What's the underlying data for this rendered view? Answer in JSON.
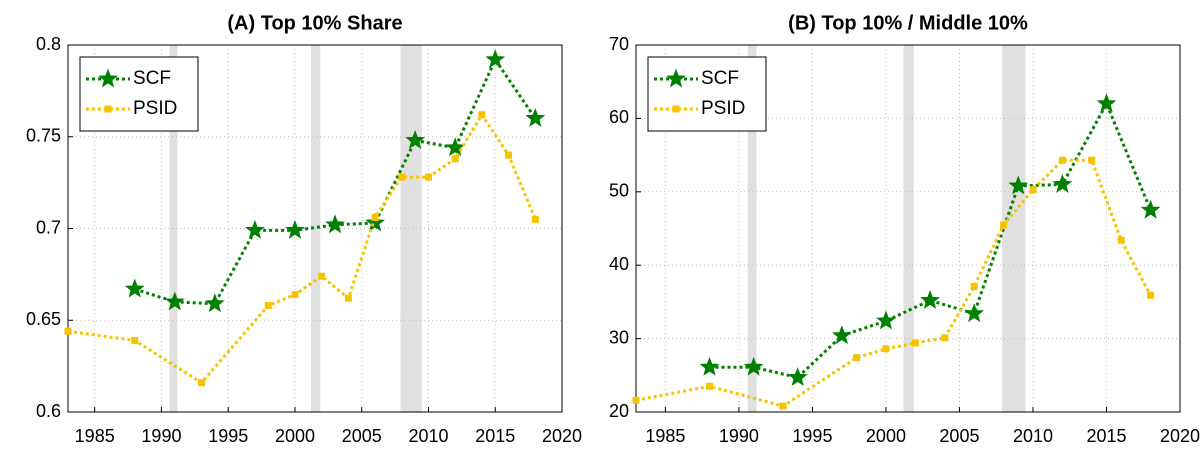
{
  "chart_data": [
    {
      "type": "line",
      "title": "(A) Top 10% Share",
      "xlim": [
        1983,
        2020
      ],
      "xticks": [
        1985,
        1990,
        1995,
        2000,
        2005,
        2010,
        2015,
        2020
      ],
      "ylim": [
        0.6,
        0.8
      ],
      "yticks": [
        0.6,
        0.65,
        0.7,
        0.75,
        0.8
      ],
      "grid": true,
      "legend": "upper left",
      "shaded_periods": [
        [
          1990.6,
          1991.2
        ],
        [
          2001.2,
          2001.9
        ],
        [
          2007.9,
          2009.5
        ]
      ],
      "series": [
        {
          "name": "SCF",
          "color": "#008000",
          "marker": "star",
          "x": [
            1988,
            1991,
            1994,
            1997,
            2000,
            2003,
            2006,
            2009,
            2012,
            2015,
            2018
          ],
          "values": [
            0.667,
            0.66,
            0.659,
            0.699,
            0.699,
            0.702,
            0.703,
            0.748,
            0.744,
            0.792,
            0.76
          ]
        },
        {
          "name": "PSID",
          "color": "#f7c200",
          "marker": "square",
          "x": [
            1983,
            1988,
            1993,
            1998,
            2000,
            2002,
            2004,
            2006,
            2008,
            2010,
            2012,
            2014,
            2016,
            2018
          ],
          "values": [
            0.644,
            0.639,
            0.616,
            0.658,
            0.664,
            0.674,
            0.662,
            0.706,
            0.728,
            0.728,
            0.738,
            0.762,
            0.74,
            0.705
          ]
        }
      ]
    },
    {
      "type": "line",
      "title": "(B) Top 10% / Middle 10%",
      "xlim": [
        1983,
        2020
      ],
      "xticks": [
        1985,
        1990,
        1995,
        2000,
        2005,
        2010,
        2015,
        2020
      ],
      "ylim": [
        20,
        70
      ],
      "yticks": [
        20,
        30,
        40,
        50,
        60,
        70
      ],
      "grid": true,
      "legend": "upper left",
      "shaded_periods": [
        [
          1990.6,
          1991.2
        ],
        [
          2001.2,
          2001.9
        ],
        [
          2007.9,
          2009.5
        ]
      ],
      "series": [
        {
          "name": "SCF",
          "color": "#008000",
          "marker": "star",
          "x": [
            1988,
            1991,
            1994,
            1997,
            2000,
            2003,
            2006,
            2009,
            2012,
            2015,
            2018
          ],
          "values": [
            26.1,
            26.1,
            24.7,
            30.4,
            32.4,
            35.2,
            33.4,
            50.8,
            51.0,
            62.0,
            47.5
          ]
        },
        {
          "name": "PSID",
          "color": "#f7c200",
          "marker": "square",
          "x": [
            1983,
            1988,
            1993,
            1998,
            2000,
            2002,
            2004,
            2006,
            2008,
            2010,
            2012,
            2014,
            2016,
            2018
          ],
          "values": [
            21.6,
            23.5,
            20.8,
            27.4,
            28.6,
            29.4,
            30.1,
            37.1,
            45.5,
            50.3,
            54.3,
            54.3,
            43.4,
            35.9
          ]
        }
      ]
    }
  ]
}
